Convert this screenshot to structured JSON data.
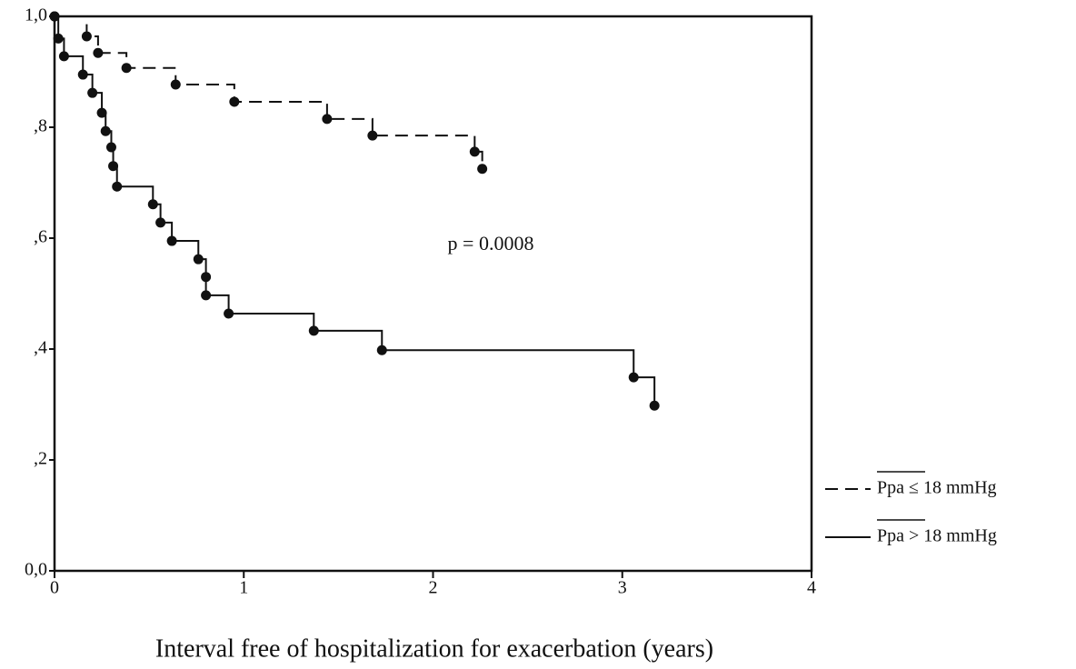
{
  "chart_data": {
    "type": "step",
    "annotation": "p = 0.0008",
    "x_label": "Interval free of hospitalization for exacerbation (years)",
    "xlim": [
      0,
      4
    ],
    "xticks": [
      0,
      1,
      2,
      3,
      4
    ],
    "ylim": [
      0,
      1
    ],
    "yticks": [
      {
        "value": 0,
        "label": "0,0"
      },
      {
        "value": 0.2,
        "label": ",2"
      },
      {
        "value": 0.4,
        "label": ",4"
      },
      {
        "value": 0.6,
        "label": ",6"
      },
      {
        "value": 0.8,
        "label": ",8"
      },
      {
        "value": 1,
        "label": "1,0"
      }
    ],
    "series": [
      {
        "name": "Ppa ≤ 18 mmHg",
        "color": "#111111",
        "dash": true,
        "x": [
          0,
          0.17,
          0.23,
          0.38,
          0.64,
          0.95,
          1.44,
          1.68,
          2.22,
          2.26
        ],
        "values": [
          1.0,
          0.964,
          0.934,
          0.907,
          0.877,
          0.846,
          0.815,
          0.785,
          0.756,
          0.725
        ]
      },
      {
        "name": "Ppa > 18 mmHg",
        "color": "#111111",
        "dash": false,
        "x": [
          0,
          0.02,
          0.05,
          0.15,
          0.2,
          0.25,
          0.27,
          0.3,
          0.31,
          0.33,
          0.52,
          0.56,
          0.62,
          0.76,
          0.8,
          0.8,
          0.92,
          1.37,
          1.73,
          3.06,
          3.17
        ],
        "values": [
          1.0,
          0.96,
          0.928,
          0.895,
          0.862,
          0.826,
          0.793,
          0.764,
          0.73,
          0.693,
          0.661,
          0.628,
          0.595,
          0.562,
          0.53,
          0.497,
          0.464,
          0.433,
          0.398,
          0.349,
          0.298
        ]
      }
    ]
  }
}
